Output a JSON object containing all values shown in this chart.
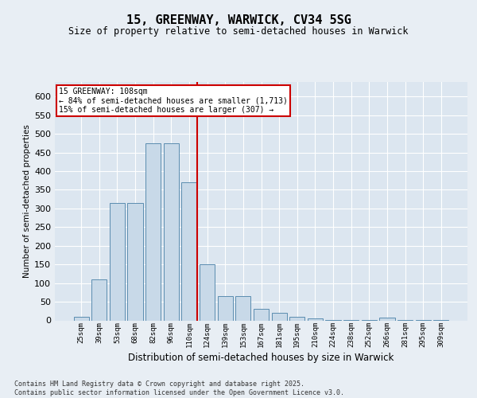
{
  "title1": "15, GREENWAY, WARWICK, CV34 5SG",
  "title2": "Size of property relative to semi-detached houses in Warwick",
  "xlabel": "Distribution of semi-detached houses by size in Warwick",
  "ylabel": "Number of semi-detached properties",
  "categories": [
    "25sqm",
    "39sqm",
    "53sqm",
    "68sqm",
    "82sqm",
    "96sqm",
    "110sqm",
    "124sqm",
    "139sqm",
    "153sqm",
    "167sqm",
    "181sqm",
    "195sqm",
    "210sqm",
    "224sqm",
    "238sqm",
    "252sqm",
    "266sqm",
    "281sqm",
    "295sqm",
    "309sqm"
  ],
  "values": [
    10,
    110,
    315,
    315,
    475,
    475,
    370,
    150,
    65,
    65,
    30,
    20,
    10,
    5,
    2,
    2,
    1,
    8,
    1,
    1,
    1
  ],
  "bar_color": "#c8d9e8",
  "bar_edge_color": "#5b8db0",
  "vline_x_index": 6,
  "vline_color": "#cc0000",
  "annotation_title": "15 GREENWAY: 108sqm",
  "annotation_line1": "← 84% of semi-detached houses are smaller (1,713)",
  "annotation_line2": "15% of semi-detached houses are larger (307) →",
  "annotation_box_color": "#cc0000",
  "ylim": [
    0,
    640
  ],
  "yticks": [
    0,
    50,
    100,
    150,
    200,
    250,
    300,
    350,
    400,
    450,
    500,
    550,
    600
  ],
  "footer": "Contains HM Land Registry data © Crown copyright and database right 2025.\nContains public sector information licensed under the Open Government Licence v3.0.",
  "bg_color": "#e8eef4",
  "plot_bg_color": "#dce6f0"
}
